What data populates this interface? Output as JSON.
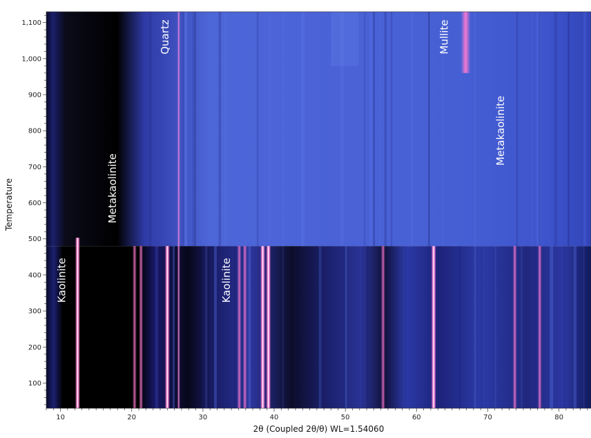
{
  "chart_data": {
    "type": "heatmap",
    "title": "",
    "xlabel": "2θ (Coupled 2θ/θ) WL=1.54060",
    "ylabel": "Temperature",
    "xlim": [
      8,
      84.5
    ],
    "ylim": [
      30,
      1130
    ],
    "x_ticks": [
      10,
      20,
      30,
      40,
      50,
      60,
      70,
      80
    ],
    "y_ticks": [
      {
        "value": 100,
        "label": "100"
      },
      {
        "value": 200,
        "label": "200"
      },
      {
        "value": 300,
        "label": "300"
      },
      {
        "value": 400,
        "label": "400"
      },
      {
        "value": 500,
        "label": "500"
      },
      {
        "value": 600,
        "label": "600"
      },
      {
        "value": 700,
        "label": "700"
      },
      {
        "value": 800,
        "label": "800"
      },
      {
        "value": 900,
        "label": "900"
      },
      {
        "value": 1000,
        "label": "1,000"
      },
      {
        "value": 1100,
        "label": "1,100"
      }
    ],
    "transition_temperature": 480,
    "low_temp_peaks_2theta": [
      12.4,
      20.4,
      21.3,
      25.0,
      35.1,
      35.9,
      38.4,
      39.2,
      55.3,
      62.4,
      73.8,
      77.3
    ],
    "quartz_peak_2theta": 26.6,
    "mullite_peak": {
      "x": 66.9,
      "t_start": 960
    },
    "annotations": [
      {
        "text": "Kaolinite",
        "x": 10.2,
        "t": 385
      },
      {
        "text": "Metakaolinite",
        "x": 17.3,
        "t": 640
      },
      {
        "text": "Quartz",
        "x": 24.7,
        "t": 1060
      },
      {
        "text": "Kaolinite",
        "x": 33.3,
        "t": 385
      },
      {
        "text": "Mullite",
        "x": 63.9,
        "t": 1060
      },
      {
        "text": "Metakaolinite",
        "x": 71.8,
        "t": 800
      }
    ],
    "colors": {
      "low": "#000000",
      "mid": "#3c50d2",
      "high": "#ff78d2",
      "peak": "#ffffff"
    }
  }
}
